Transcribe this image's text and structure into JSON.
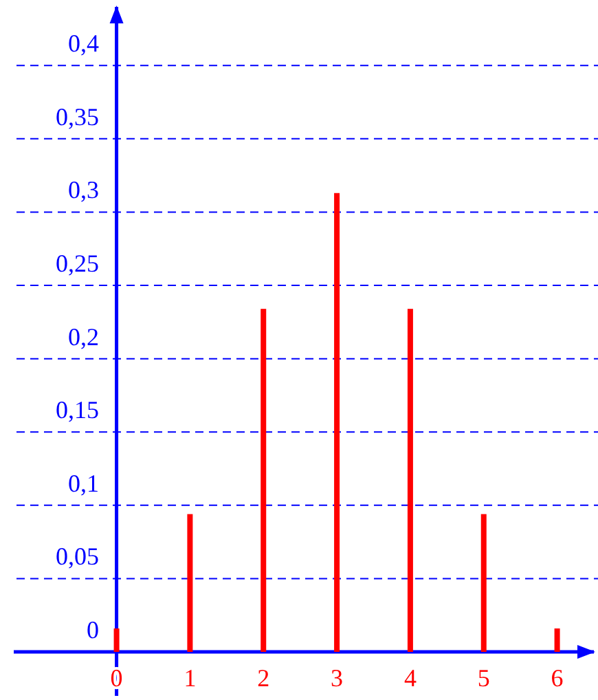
{
  "chart_data": {
    "type": "bar",
    "x": [
      0,
      1,
      2,
      3,
      4,
      5,
      6
    ],
    "values": [
      0.016,
      0.094,
      0.234,
      0.313,
      0.234,
      0.094,
      0.016
    ],
    "color": "#ff0000",
    "xlim": [
      -1.4,
      6.5
    ],
    "xticks": [
      0,
      1,
      2,
      3,
      4,
      5,
      6
    ],
    "ylim": [
      -0.03,
      0.44
    ],
    "yticks": [
      {
        "value": 0,
        "label": "0"
      },
      {
        "value": 0.05,
        "label": "0,05"
      },
      {
        "value": 0.1,
        "label": "0,1"
      },
      {
        "value": 0.15,
        "label": "0,15"
      },
      {
        "value": 0.2,
        "label": "0,2"
      },
      {
        "value": 0.25,
        "label": "0,25"
      },
      {
        "value": 0.3,
        "label": "0,3"
      },
      {
        "value": 0.35,
        "label": "0,35"
      },
      {
        "value": 0.4,
        "label": "0,4"
      }
    ],
    "grid": "y"
  }
}
